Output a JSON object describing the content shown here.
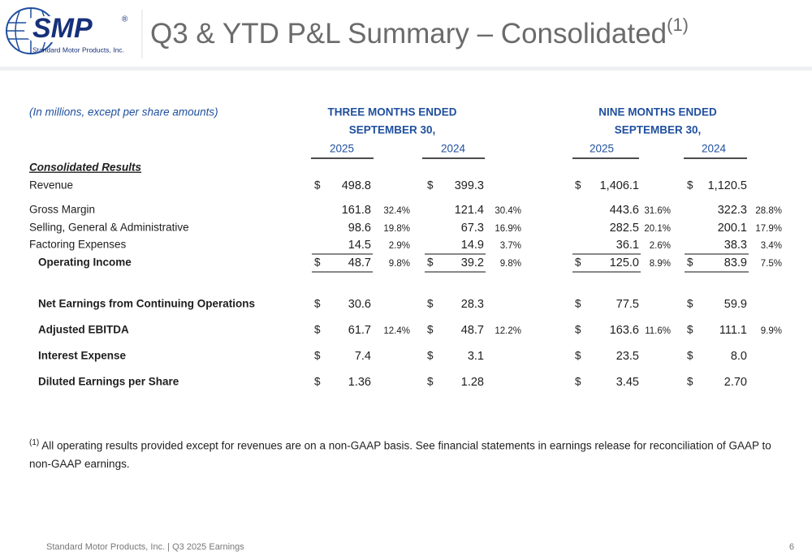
{
  "header": {
    "logo": "SMP",
    "logo_mark": "®",
    "logo_subtitle": "Standard Motor Products, Inc.",
    "title": "Q3 & YTD P&L Summary – Consolidated",
    "title_note": "(1)"
  },
  "table": {
    "units_note": "(In millions, except per share amounts)",
    "periods": [
      {
        "label": "THREE MONTHS ENDED",
        "sublabel": "SEPTEMBER 30,",
        "years": [
          "2025",
          "2024"
        ]
      },
      {
        "label": "NINE MONTHS ENDED",
        "sublabel": "SEPTEMBER 30,",
        "years": [
          "2025",
          "2024"
        ]
      }
    ],
    "section": "Consolidated Results",
    "rows": [
      {
        "label": "Revenue",
        "cells": [
          {
            "currency": "$",
            "amount": "498.8"
          },
          {
            "currency": "$",
            "amount": "399.3"
          },
          {
            "currency": "$",
            "amount": "1,406.1"
          },
          {
            "currency": "$",
            "amount": "1,120.5"
          }
        ]
      },
      {
        "label": "Gross Margin",
        "cells": [
          {
            "amount": "161.8",
            "pct": "32.4%"
          },
          {
            "amount": "121.4",
            "pct": "30.4%"
          },
          {
            "amount": "443.6",
            "pct": "31.6%"
          },
          {
            "amount": "322.3",
            "pct": "28.8%"
          }
        ]
      },
      {
        "label": "Selling, General & Administrative",
        "cells": [
          {
            "amount": "98.6",
            "pct": "19.8%"
          },
          {
            "amount": "67.3",
            "pct": "16.9%"
          },
          {
            "amount": "282.5",
            "pct": "20.1%"
          },
          {
            "amount": "200.1",
            "pct": "17.9%"
          }
        ]
      },
      {
        "label": "Factoring Expenses",
        "cells": [
          {
            "amount": "14.5",
            "pct": "2.9%"
          },
          {
            "amount": "14.9",
            "pct": "3.7%"
          },
          {
            "amount": "36.1",
            "pct": "2.6%"
          },
          {
            "amount": "38.3",
            "pct": "3.4%"
          }
        ]
      },
      {
        "label": "Operating Income",
        "cells": [
          {
            "currency": "$",
            "amount": "48.7",
            "pct": "9.8%"
          },
          {
            "currency": "$",
            "amount": "39.2",
            "pct": "9.8%"
          },
          {
            "currency": "$",
            "amount": "125.0",
            "pct": "8.9%"
          },
          {
            "currency": "$",
            "amount": "83.9",
            "pct": "7.5%"
          }
        ]
      },
      {
        "label": "Net Earnings from Continuing Operations",
        "cells": [
          {
            "currency": "$",
            "amount": "30.6"
          },
          {
            "currency": "$",
            "amount": "28.3"
          },
          {
            "currency": "$",
            "amount": "77.5"
          },
          {
            "currency": "$",
            "amount": "59.9"
          }
        ]
      },
      {
        "label": "Adjusted EBITDA",
        "cells": [
          {
            "currency": "$",
            "amount": "61.7",
            "pct": "12.4%"
          },
          {
            "currency": "$",
            "amount": "48.7",
            "pct": "12.2%"
          },
          {
            "currency": "$",
            "amount": "163.6",
            "pct": "11.6%"
          },
          {
            "currency": "$",
            "amount": "111.1",
            "pct": "9.9%"
          }
        ]
      },
      {
        "label": "Interest Expense",
        "cells": [
          {
            "currency": "$",
            "amount": "7.4"
          },
          {
            "currency": "$",
            "amount": "3.1"
          },
          {
            "currency": "$",
            "amount": "23.5"
          },
          {
            "currency": "$",
            "amount": "8.0"
          }
        ]
      },
      {
        "label": "Diluted Earnings per Share",
        "cells": [
          {
            "currency": "$",
            "amount": "1.36"
          },
          {
            "currency": "$",
            "amount": "1.28"
          },
          {
            "currency": "$",
            "amount": "3.45"
          },
          {
            "currency": "$",
            "amount": "2.70"
          }
        ]
      }
    ]
  },
  "footnote": {
    "marker": "(1)",
    "text": "All operating results provided except for revenues are on a non-GAAP basis. See financial statements in earnings release for reconciliation of GAAP to non-GAAP earnings."
  },
  "footer": {
    "text": "Standard Motor Products, Inc. | Q3 2025 Earnings",
    "page": "6"
  }
}
